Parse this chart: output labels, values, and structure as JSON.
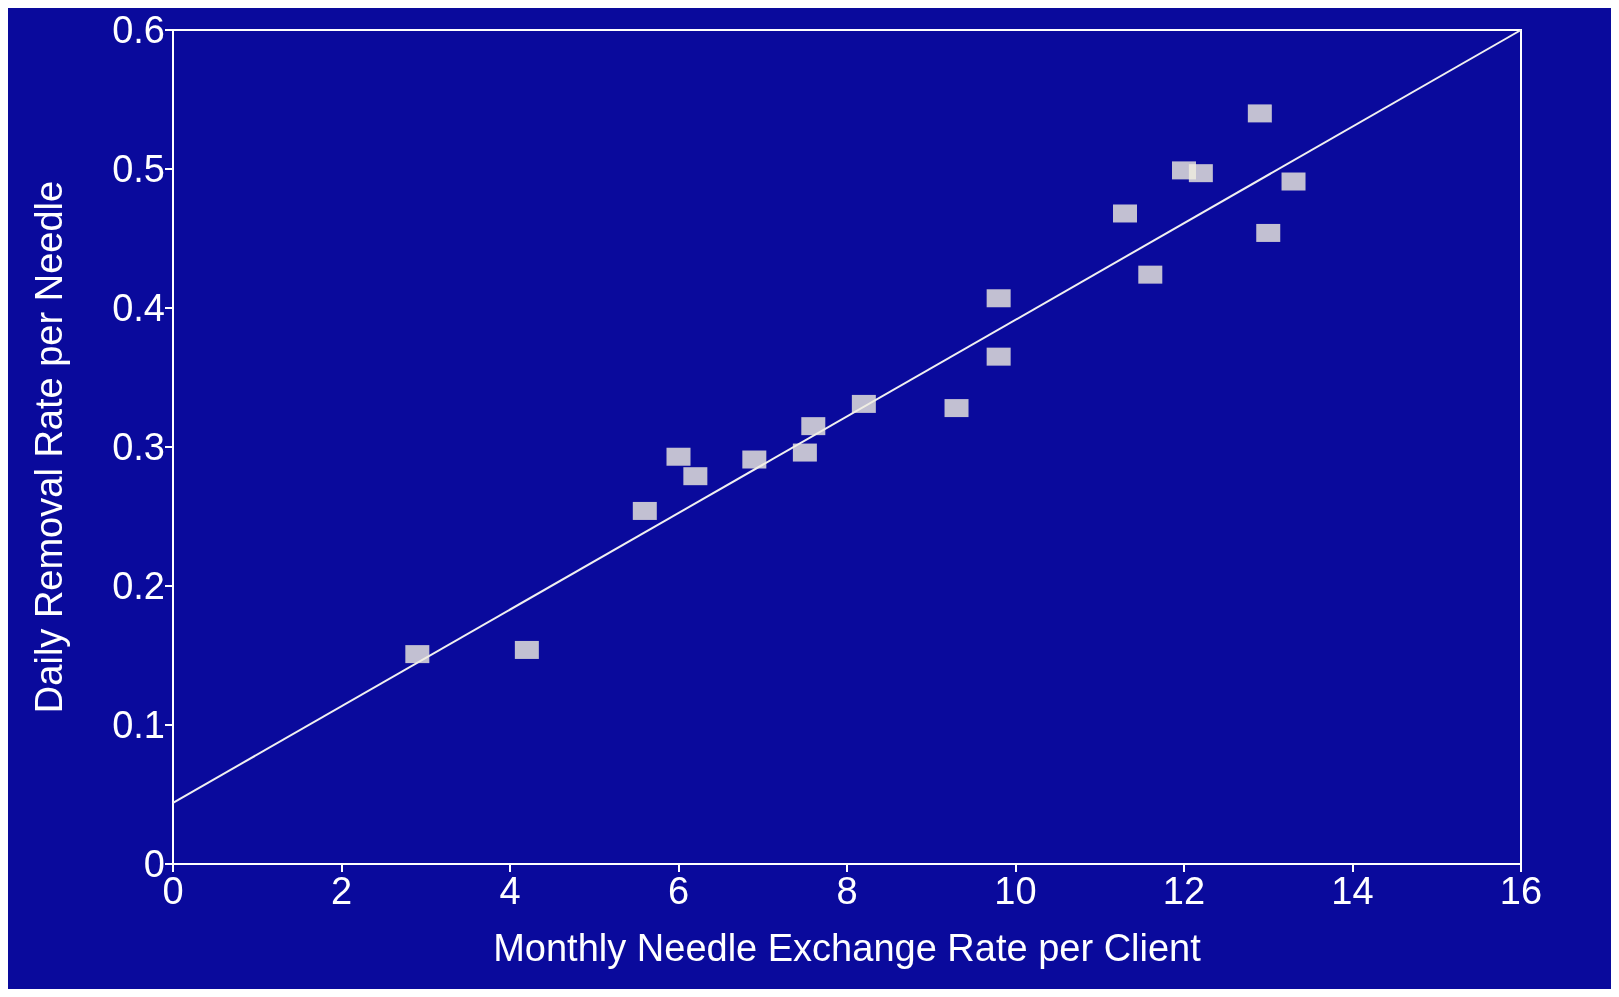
{
  "chart_data": {
    "type": "scatter",
    "xlabel": "Monthly Needle Exchange Rate per Client",
    "ylabel": "Daily Removal Rate per Needle",
    "xlim": [
      0,
      16
    ],
    "xticks": [
      0,
      2,
      4,
      6,
      8,
      10,
      12,
      14,
      16
    ],
    "ylim": [
      0,
      0.6
    ],
    "yticks": [
      0,
      0.1,
      0.2,
      0.3,
      0.4,
      0.5,
      0.6
    ],
    "grid": false,
    "marker": "square",
    "series": [
      {
        "color": "#f0eee0",
        "x": [
          2.9,
          4.2,
          5.6,
          6.0,
          6.2,
          6.9,
          7.5,
          7.6,
          8.2,
          9.3,
          9.8,
          9.8,
          11.3,
          11.6,
          12.0,
          12.2,
          12.9,
          13.0,
          13.3
        ],
        "values": [
          0.151,
          0.154,
          0.254,
          0.293,
          0.279,
          0.291,
          0.296,
          0.315,
          0.331,
          0.328,
          0.407,
          0.365,
          0.468,
          0.424,
          0.499,
          0.497,
          0.54,
          0.454,
          0.491
        ]
      },
      {
        "type": "line",
        "color": "#f0f0f0",
        "marker": "none",
        "line_style": "solid",
        "x": [
          0,
          16
        ],
        "values": [
          0.044,
          0.6
        ]
      }
    ]
  }
}
